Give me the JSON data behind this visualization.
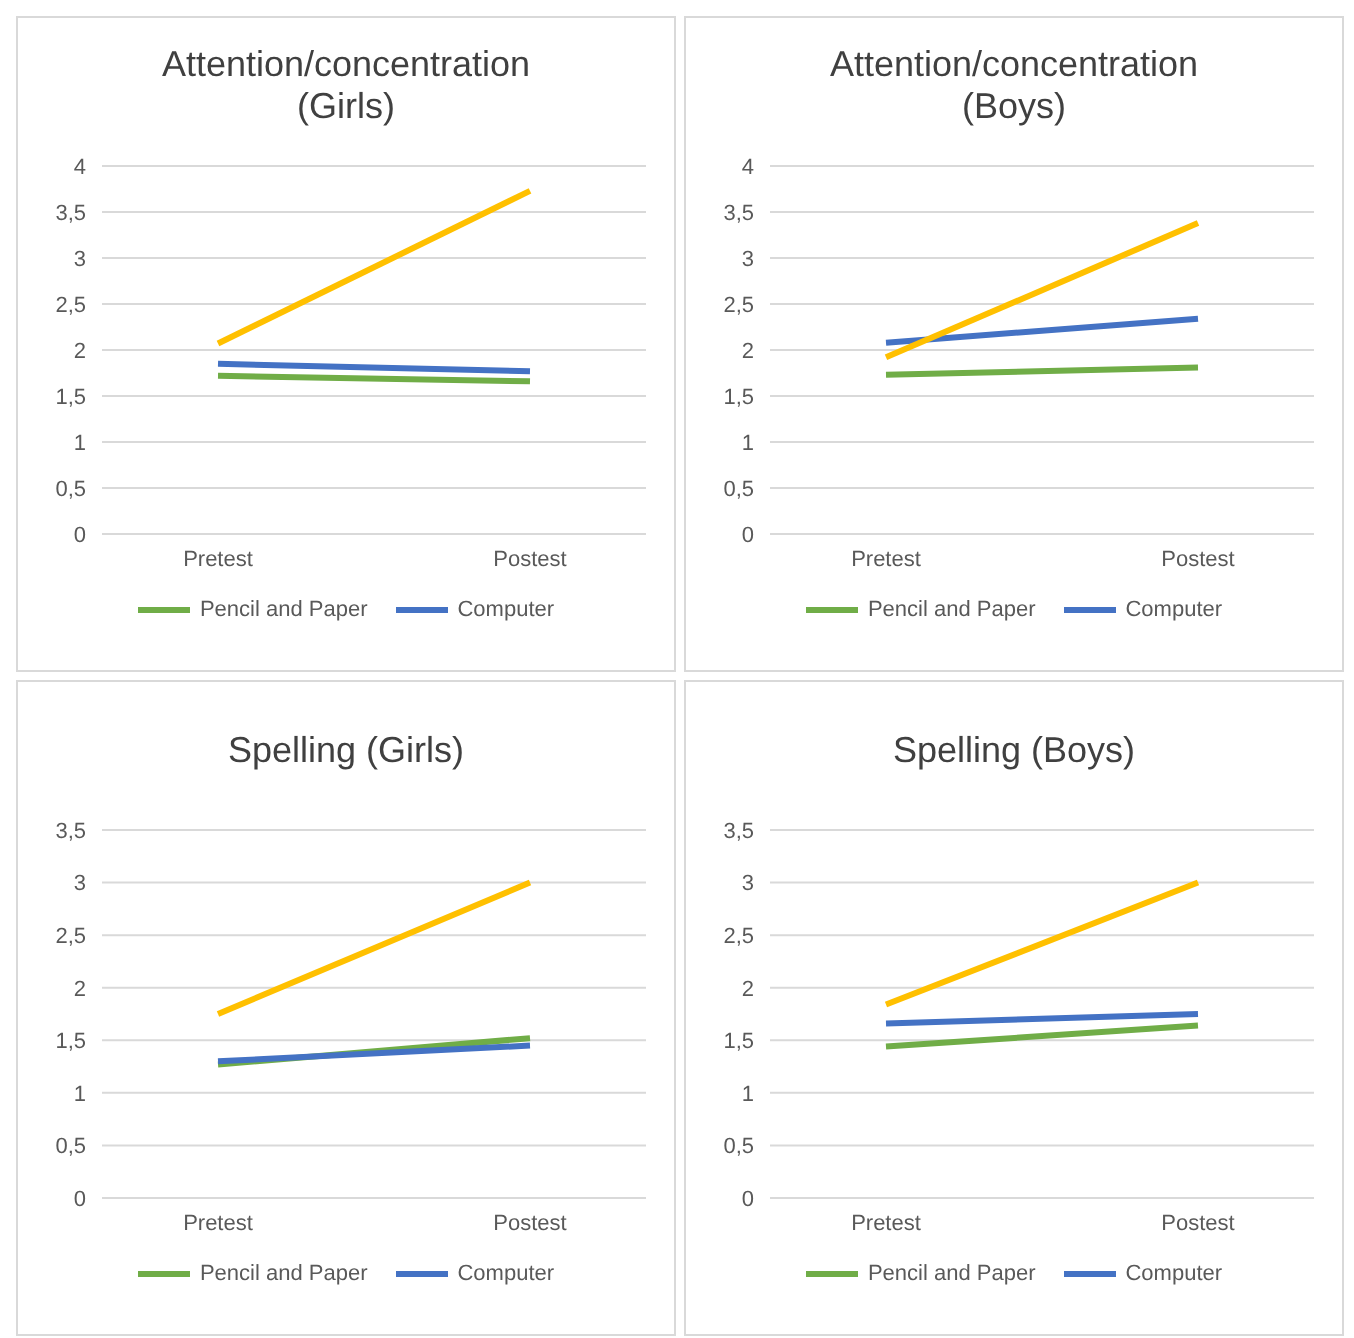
{
  "chart_data": [
    {
      "type": "line",
      "title": "Attention/concentration (Girls)",
      "categories": [
        "Pretest",
        "Postest"
      ],
      "series": [
        {
          "name": "Pencil and Paper",
          "color": "#70ad47",
          "values": [
            1.72,
            1.66
          ]
        },
        {
          "name": "Computer",
          "color": "#4472c4",
          "values": [
            1.85,
            1.77
          ]
        },
        {
          "color": "#ffc000",
          "values": [
            2.07,
            3.73
          ]
        }
      ],
      "ylim": [
        0,
        4
      ],
      "yticks": [
        0,
        {
          "value": 0.5,
          "label": "0,5"
        },
        1,
        {
          "value": 1.5,
          "label": "1,5"
        },
        2,
        {
          "value": 2.5,
          "label": "2,5"
        },
        3,
        {
          "value": 3.5,
          "label": "3,5"
        },
        4
      ],
      "grid": "y",
      "legend": "bottom",
      "marker": "none"
    },
    {
      "type": "line",
      "title": "Attention/concentration (Boys)",
      "categories": [
        "Pretest",
        "Postest"
      ],
      "series": [
        {
          "name": "Pencil and Paper",
          "color": "#70ad47",
          "values": [
            1.73,
            1.81
          ]
        },
        {
          "name": "Computer",
          "color": "#4472c4",
          "values": [
            2.08,
            2.34
          ]
        },
        {
          "color": "#ffc000",
          "values": [
            1.92,
            3.38
          ]
        }
      ],
      "ylim": [
        0,
        4
      ],
      "yticks": [
        0,
        {
          "value": 0.5,
          "label": "0,5"
        },
        1,
        {
          "value": 1.5,
          "label": "1,5"
        },
        2,
        {
          "value": 2.5,
          "label": "2,5"
        },
        3,
        {
          "value": 3.5,
          "label": "3,5"
        },
        4
      ],
      "grid": "y",
      "legend": "bottom",
      "marker": "none"
    },
    {
      "type": "line",
      "title": "Spelling (Girls)",
      "categories": [
        "Pretest",
        "Postest"
      ],
      "series": [
        {
          "name": "Pencil and Paper",
          "color": "#70ad47",
          "values": [
            1.27,
            1.52
          ]
        },
        {
          "name": "Computer",
          "color": "#4472c4",
          "values": [
            1.3,
            1.45
          ]
        },
        {
          "color": "#ffc000",
          "values": [
            1.75,
            3.0
          ]
        }
      ],
      "ylim": [
        0,
        3.5
      ],
      "yticks": [
        0,
        {
          "value": 0.5,
          "label": "0,5"
        },
        1,
        {
          "value": 1.5,
          "label": "1,5"
        },
        2,
        {
          "value": 2.5,
          "label": "2,5"
        },
        3,
        {
          "value": 3.5,
          "label": "3,5"
        }
      ],
      "grid": "y",
      "legend": "bottom",
      "marker": "none"
    },
    {
      "type": "line",
      "title": "Spelling (Boys)",
      "categories": [
        "Pretest",
        "Postest"
      ],
      "series": [
        {
          "name": "Pencil and Paper",
          "color": "#70ad47",
          "values": [
            1.44,
            1.64
          ]
        },
        {
          "name": "Computer",
          "color": "#4472c4",
          "values": [
            1.66,
            1.75
          ]
        },
        {
          "color": "#ffc000",
          "values": [
            1.84,
            3.0
          ]
        }
      ],
      "ylim": [
        0,
        3.5
      ],
      "yticks": [
        0,
        {
          "value": 0.5,
          "label": "0,5"
        },
        1,
        {
          "value": 1.5,
          "label": "1,5"
        },
        2,
        {
          "value": 2.5,
          "label": "2,5"
        },
        3,
        {
          "value": 3.5,
          "label": "3,5"
        }
      ],
      "grid": "y",
      "legend": "bottom",
      "marker": "none"
    }
  ]
}
